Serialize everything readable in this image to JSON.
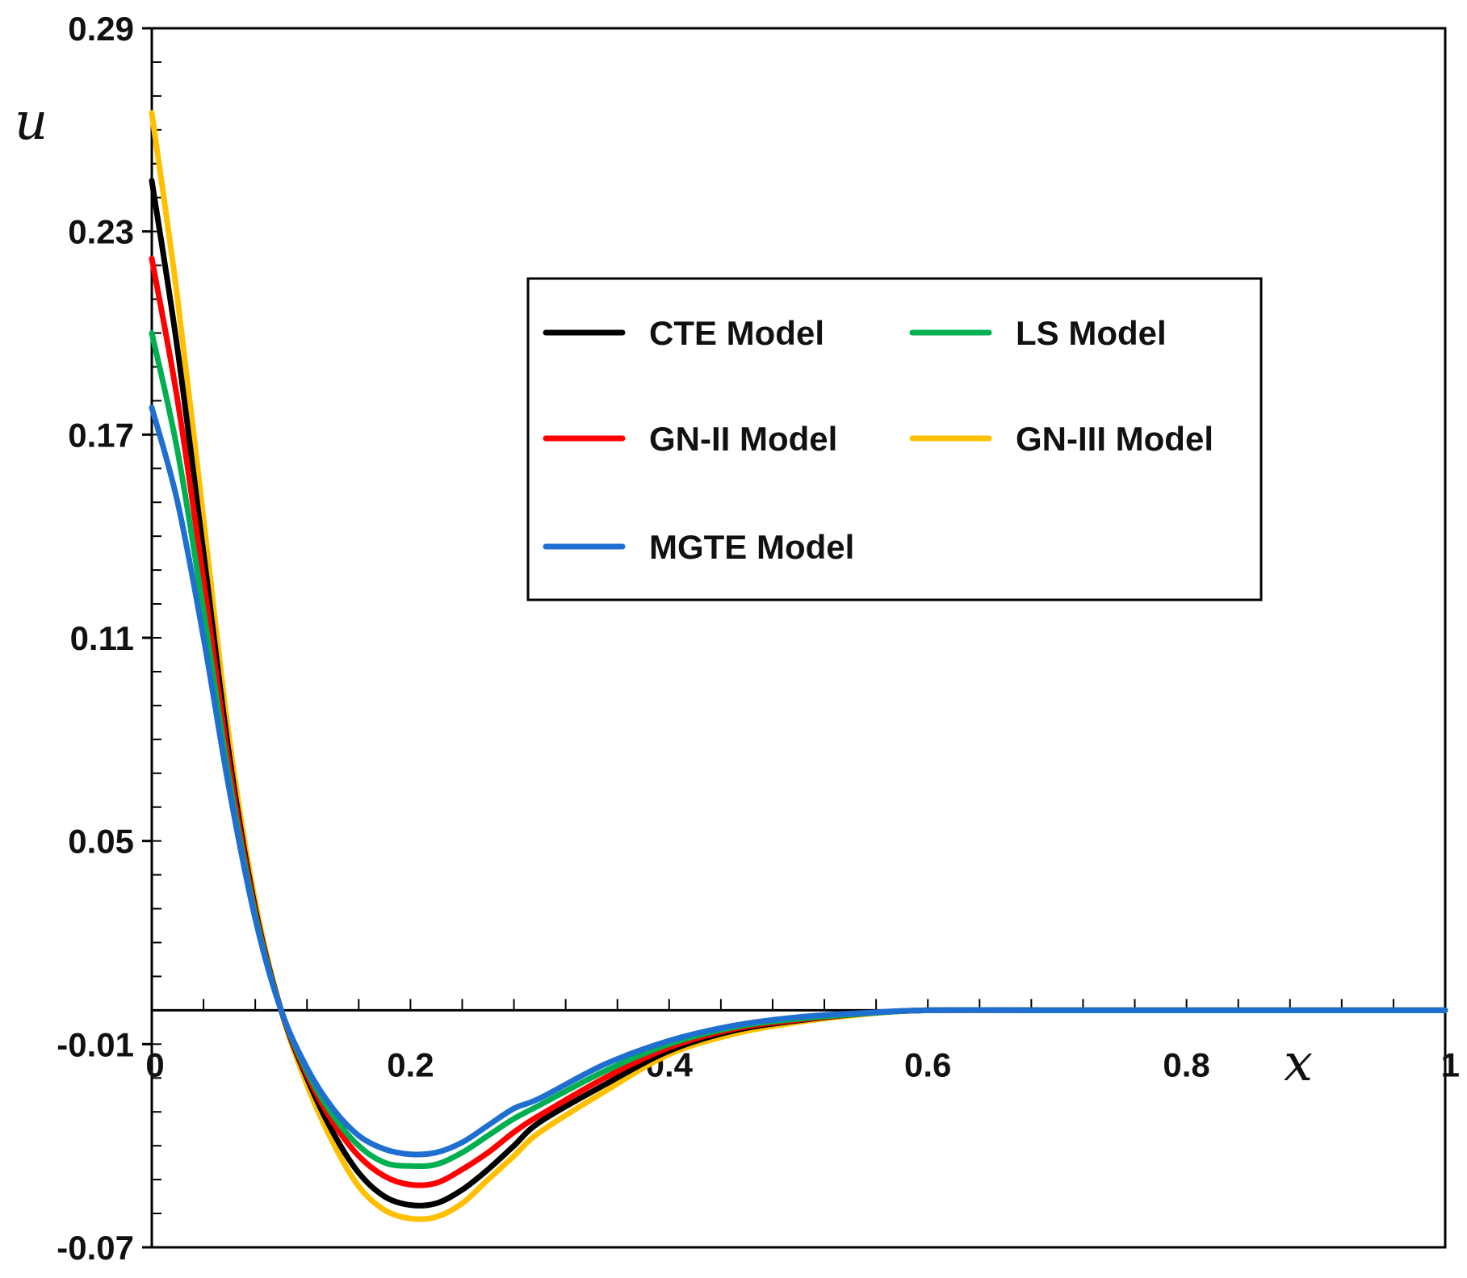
{
  "chart_data": {
    "type": "line",
    "title": "",
    "xlabel": "x",
    "ylabel": "u",
    "xlim": [
      0,
      1
    ],
    "ylim": [
      -0.07,
      0.29
    ],
    "x_ticks": [
      {
        "value": 0,
        "label": "0"
      },
      {
        "value": 0.2,
        "label": "0.2"
      },
      {
        "value": 0.4,
        "label": "0.4"
      },
      {
        "value": 0.6,
        "label": "0.6"
      },
      {
        "value": 0.8,
        "label": "0.8"
      },
      {
        "value": 1,
        "label": "1"
      }
    ],
    "y_ticks": [
      {
        "value": 0.29,
        "label": "0.29"
      },
      {
        "value": 0.23,
        "label": "0.23"
      },
      {
        "value": 0.17,
        "label": "0.17"
      },
      {
        "value": 0.11,
        "label": "0.11"
      },
      {
        "value": 0.05,
        "label": "0.05"
      },
      {
        "value": -0.01,
        "label": "-0.01"
      },
      {
        "value": -0.07,
        "label": "-0.07"
      }
    ],
    "grid": false,
    "legend_position": "upper-right",
    "x": [
      0,
      0.02,
      0.04,
      0.06,
      0.08,
      0.1,
      0.12,
      0.14,
      0.16,
      0.18,
      0.2,
      0.22,
      0.24,
      0.26,
      0.28,
      0.3,
      0.35,
      0.4,
      0.45,
      0.5,
      0.55,
      0.6,
      0.7,
      0.8,
      0.9,
      1.0
    ],
    "series": [
      {
        "name": "CTE Model",
        "color": "#000000",
        "values": [
          0.245,
          0.195,
          0.135,
          0.075,
          0.03,
          0.0,
          -0.02,
          -0.036,
          -0.048,
          -0.055,
          -0.0575,
          -0.057,
          -0.053,
          -0.047,
          -0.04,
          -0.033,
          -0.022,
          -0.012,
          -0.006,
          -0.003,
          -0.001,
          0.0,
          0.0,
          0.0,
          0.0,
          0.0
        ]
      },
      {
        "name": "LS Model",
        "color": "#00B050",
        "values": [
          0.2,
          0.165,
          0.118,
          0.068,
          0.028,
          0.0,
          -0.018,
          -0.031,
          -0.04,
          -0.045,
          -0.046,
          -0.0455,
          -0.042,
          -0.037,
          -0.032,
          -0.028,
          -0.018,
          -0.01,
          -0.005,
          -0.0025,
          -0.001,
          0.0,
          0.0,
          0.0,
          0.0,
          0.0
        ]
      },
      {
        "name": "GN-II Model",
        "color": "#FF0000",
        "values": [
          0.222,
          0.18,
          0.127,
          0.072,
          0.029,
          0.0,
          -0.019,
          -0.033,
          -0.043,
          -0.049,
          -0.0515,
          -0.051,
          -0.047,
          -0.042,
          -0.036,
          -0.031,
          -0.02,
          -0.011,
          -0.0055,
          -0.0028,
          -0.001,
          0.0,
          0.0,
          0.0,
          0.0,
          0.0
        ]
      },
      {
        "name": "GN-III Model",
        "color": "#FFC000",
        "values": [
          0.265,
          0.21,
          0.145,
          0.08,
          0.032,
          0.0,
          -0.022,
          -0.039,
          -0.052,
          -0.059,
          -0.0615,
          -0.061,
          -0.057,
          -0.05,
          -0.043,
          -0.036,
          -0.024,
          -0.013,
          -0.007,
          -0.0035,
          -0.0012,
          0.0,
          0.0,
          0.0,
          0.0,
          0.0
        ]
      },
      {
        "name": "MGTE Model",
        "color": "#1F6FD1",
        "values": [
          0.178,
          0.15,
          0.11,
          0.065,
          0.027,
          0.0,
          -0.017,
          -0.029,
          -0.037,
          -0.041,
          -0.0425,
          -0.042,
          -0.039,
          -0.034,
          -0.029,
          -0.026,
          -0.016,
          -0.009,
          -0.0045,
          -0.002,
          -0.0008,
          0.0,
          0.0,
          0.0,
          0.0,
          0.0
        ]
      }
    ]
  }
}
